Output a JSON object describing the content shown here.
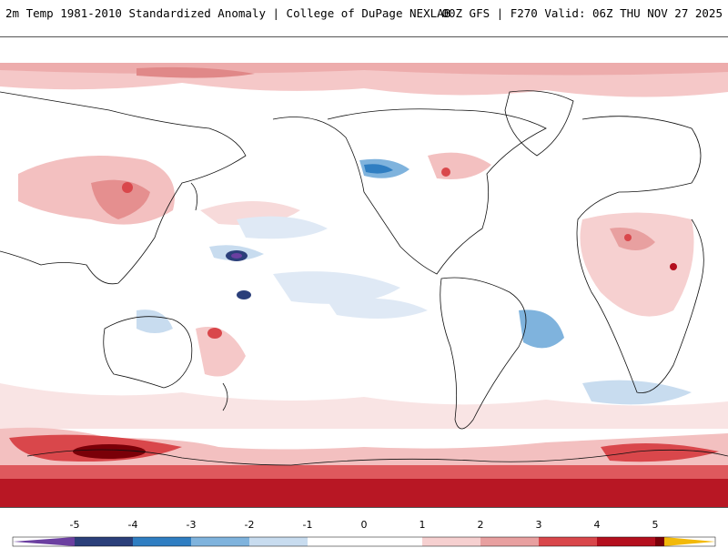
{
  "header": {
    "title": "2m Temp 1981-2010 Standardized Anomaly | College of DuPage NEXLAB",
    "run_info": "00Z GFS | F270 Valid: 06Z THU NOV 27 2025"
  },
  "colorbar": {
    "labels": [
      "-5",
      "-4",
      "-3",
      "-2",
      "-1",
      "0",
      "1",
      "2",
      "3",
      "4",
      "5"
    ],
    "colors": [
      "#6b3fa0",
      "#2b3f7a",
      "#2f7ec2",
      "#7fb3dd",
      "#c8dcef",
      "#ffffff",
      "#f6d0d0",
      "#e8a0a0",
      "#d9474b",
      "#b40f1e",
      "#7a0008",
      "#f2b90a"
    ]
  }
}
